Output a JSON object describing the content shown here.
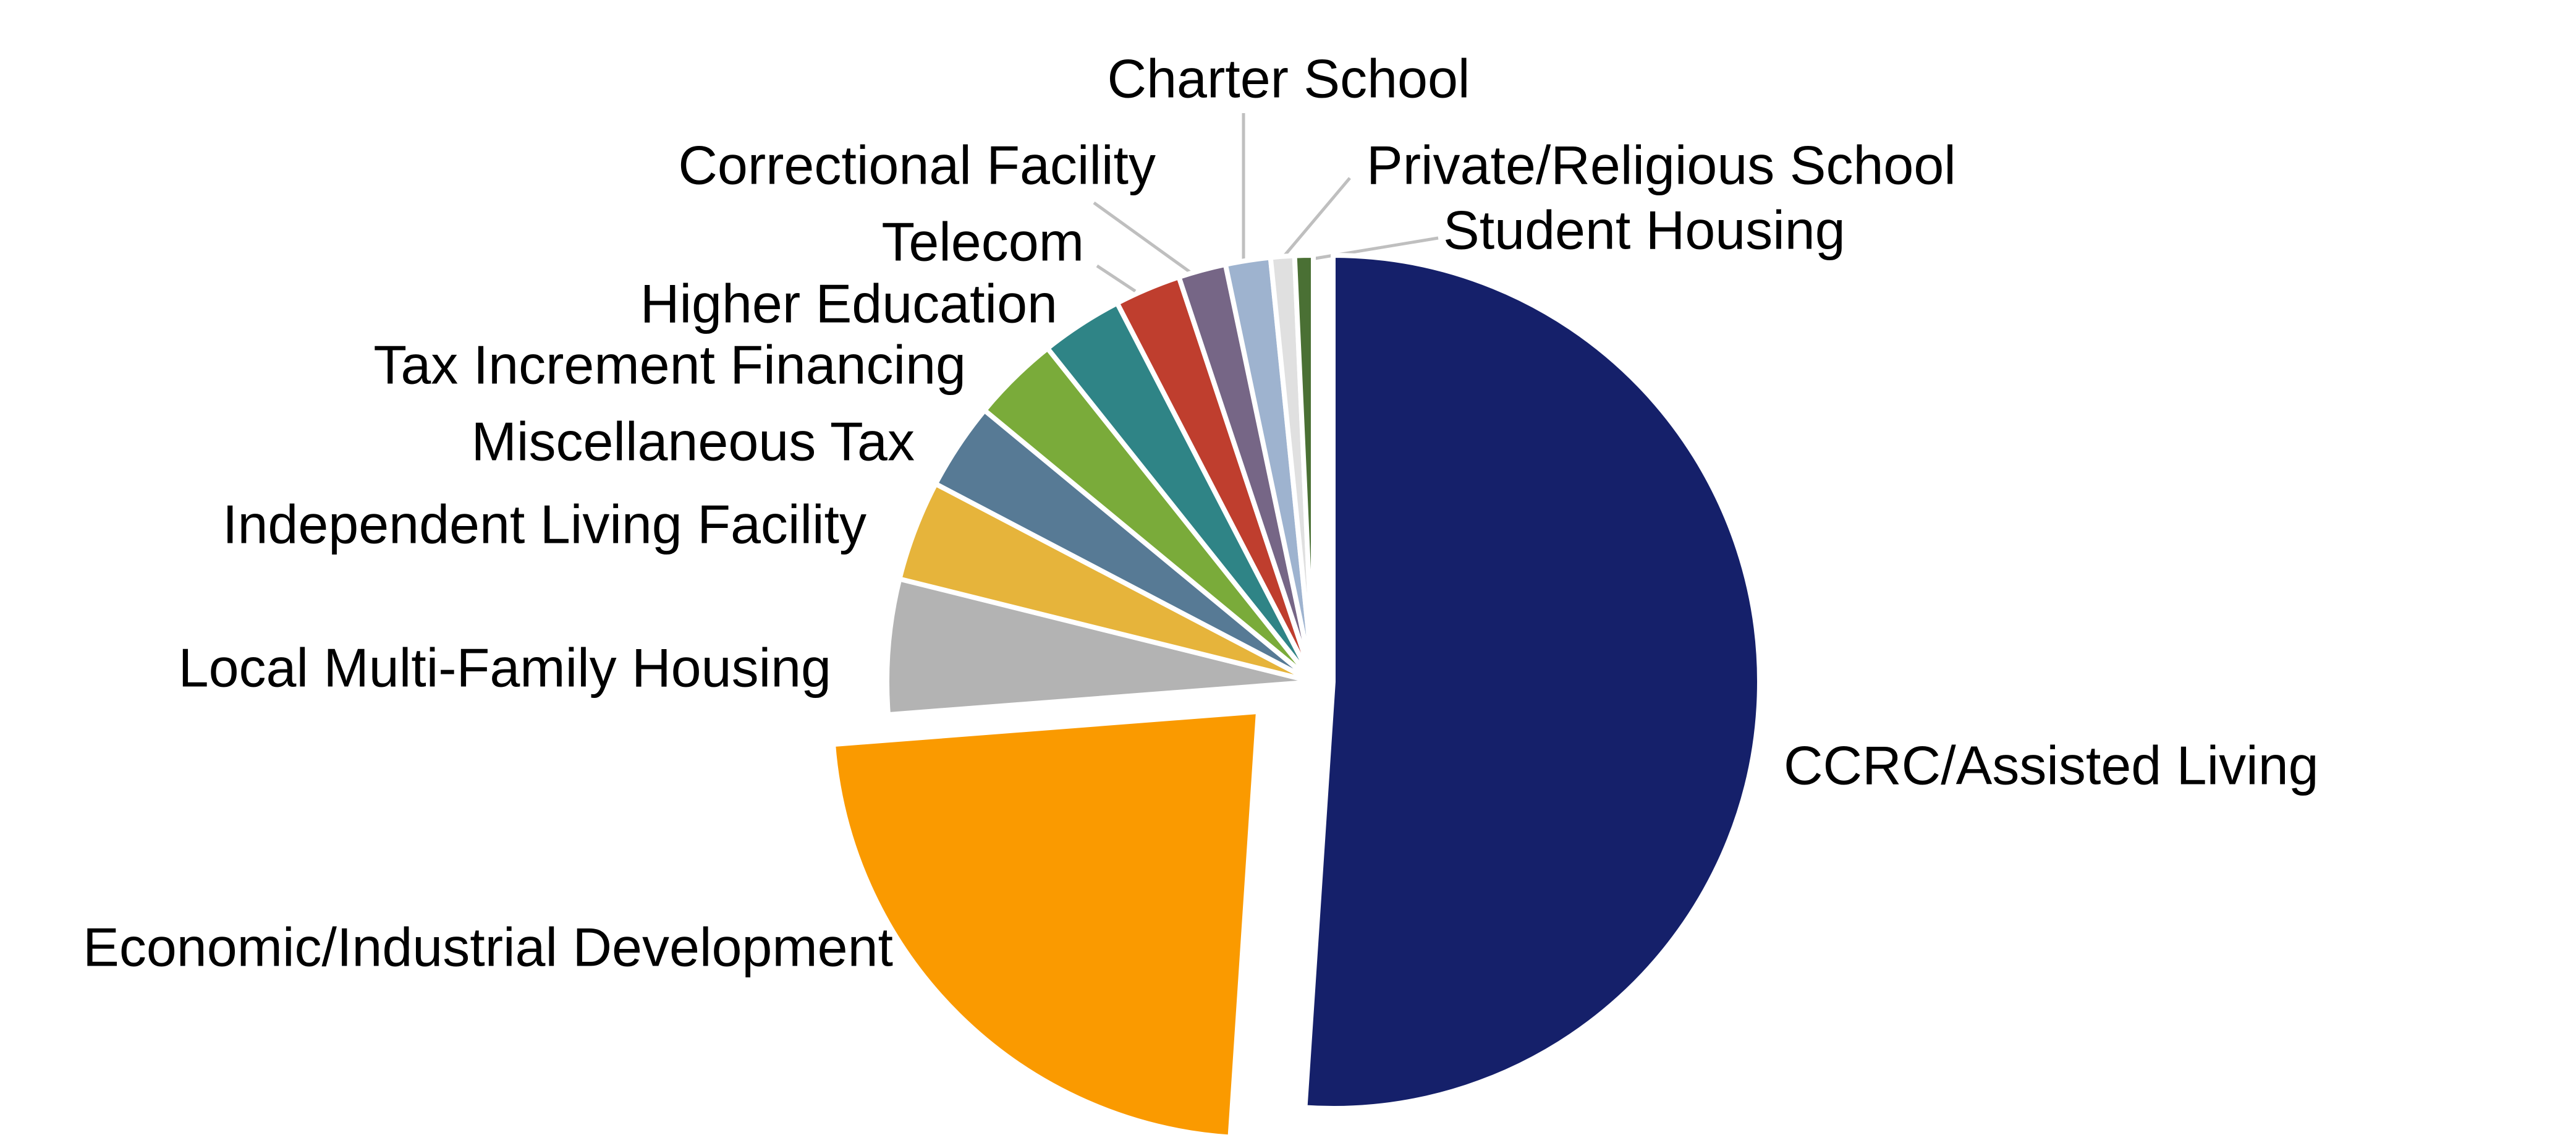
{
  "chart_data": {
    "type": "pie",
    "categories": [
      "CCRC/Assisted Living",
      "Economic/Industrial Development",
      "Local Multi-Family  Housing",
      "Independent Living Facility",
      "Miscellaneous Tax",
      "Tax Increment Financing",
      "Higher Education",
      "Telecom",
      "Correctional Facility",
      "Charter School",
      "Private/Religious School",
      "Student Housing"
    ],
    "values": [
      51,
      22.7,
      5.1,
      3.8,
      3.3,
      3.3,
      3.1,
      2.5,
      1.8,
      1.7,
      0.9,
      0.7
    ],
    "colors": [
      "#15206a",
      "#fa9a00",
      "#b3b3b3",
      "#e6b43b",
      "#577a95",
      "#7aab3a",
      "#2f8486",
      "#bf3e2e",
      "#766686",
      "#9eb3cf",
      "#e0e0e0",
      "#4a7034"
    ]
  }
}
